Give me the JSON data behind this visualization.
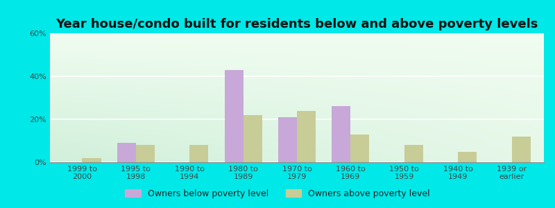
{
  "title": "Year house/condo built for residents below and above poverty levels",
  "categories": [
    "1999 to\n2000",
    "1995 to\n1998",
    "1990 to\n1994",
    "1980 to\n1989",
    "1970 to\n1979",
    "1960 to\n1969",
    "1950 to\n1959",
    "1940 to\n1949",
    "1939 or\nearlier"
  ],
  "below_poverty": [
    0,
    9,
    0,
    43,
    21,
    26,
    0,
    0,
    0
  ],
  "above_poverty": [
    2,
    8,
    8,
    22,
    24,
    13,
    8,
    5,
    12
  ],
  "below_color": "#c8a8d8",
  "above_color": "#c8cc96",
  "ylim": [
    0,
    60
  ],
  "yticks": [
    0,
    20,
    40,
    60
  ],
  "ytick_labels": [
    "0%",
    "20%",
    "40%",
    "60%"
  ],
  "outer_bg": "#00e8e8",
  "legend_below": "Owners below poverty level",
  "legend_above": "Owners above poverty level",
  "bar_width": 0.35,
  "title_fontsize": 13,
  "tick_fontsize": 8,
  "legend_fontsize": 9
}
